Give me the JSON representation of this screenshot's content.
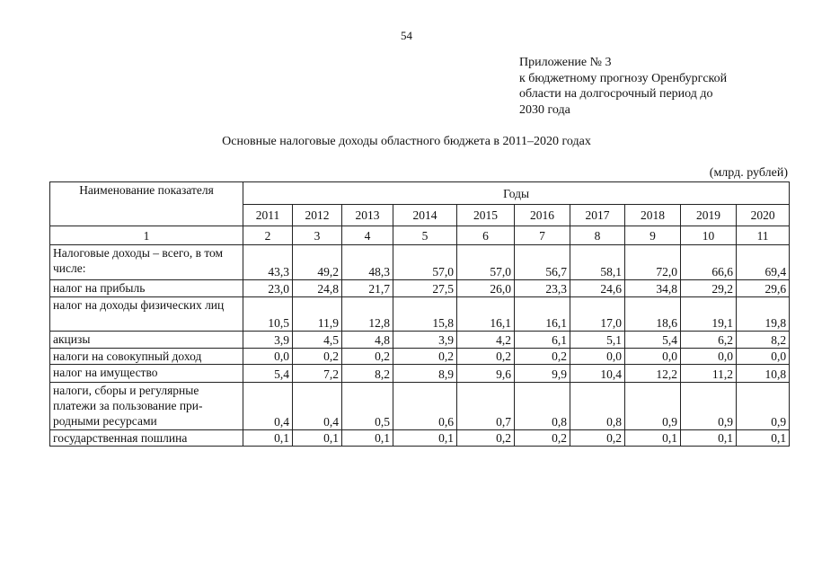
{
  "page_number": "54",
  "appendix": [
    "Приложение № 3",
    "к бюджетному прогнозу Оренбургской",
    "области на долгосрочный период до",
    "2030 года"
  ],
  "title": "Основные налоговые доходы областного бюджета в 2011–2020 годах",
  "units": "(млрд. рублей)",
  "table": {
    "header_name": "Наименование показателя",
    "header_years": "Годы",
    "years": [
      "2011",
      "2012",
      "2013",
      "2014",
      "2015",
      "2016",
      "2017",
      "2018",
      "2019",
      "2020"
    ],
    "column_numbers": [
      "1",
      "2",
      "3",
      "4",
      "5",
      "6",
      "7",
      "8",
      "9",
      "10",
      "11"
    ],
    "rows": [
      {
        "name": "Налоговые доходы – всего, в том числе:",
        "values": [
          "43,3",
          "49,2",
          "48,3",
          "57,0",
          "57,0",
          "56,7",
          "58,1",
          "72,0",
          "66,6",
          "69,4"
        ]
      },
      {
        "name": "налог на прибыль",
        "values": [
          "23,0",
          "24,8",
          "21,7",
          "27,5",
          "26,0",
          "23,3",
          "24,6",
          "34,8",
          "29,2",
          "29,6"
        ]
      },
      {
        "name": "налог на доходы физических лиц",
        "values": [
          "10,5",
          "11,9",
          "12,8",
          "15,8",
          "16,1",
          "16,1",
          "17,0",
          "18,6",
          "19,1",
          "19,8"
        ]
      },
      {
        "name": "акцизы",
        "values": [
          "3,9",
          "4,5",
          "4,8",
          "3,9",
          "4,2",
          "6,1",
          "5,1",
          "5,4",
          "6,2",
          "8,2"
        ]
      },
      {
        "name": "налоги на совокупный доход",
        "values": [
          "0,0",
          "0,2",
          "0,2",
          "0,2",
          "0,2",
          "0,2",
          "0,0",
          "0,0",
          "0,0",
          "0,0"
        ]
      },
      {
        "name": "налог на имущество",
        "values": [
          "5,4",
          "7,2",
          "8,2",
          "8,9",
          "9,6",
          "9,9",
          "10,4",
          "12,2",
          "11,2",
          "10,8"
        ]
      },
      {
        "name": "налоги, сборы и регулярные платежи за пользование при-родными ресурсами",
        "values": [
          "0,4",
          "0,4",
          "0,5",
          "0,6",
          "0,7",
          "0,8",
          "0,8",
          "0,9",
          "0,9",
          "0,9"
        ]
      },
      {
        "name": "государственная пошлина",
        "values": [
          "0,1",
          "0,1",
          "0,1",
          "0,1",
          "0,2",
          "0,2",
          "0,2",
          "0,1",
          "0,1",
          "0,1"
        ]
      }
    ]
  }
}
